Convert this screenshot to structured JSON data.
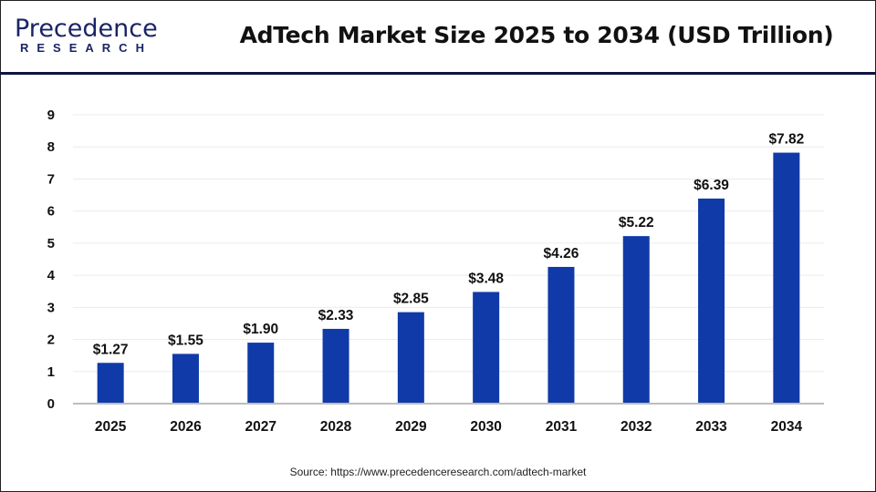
{
  "header": {
    "logo_top": "Precedence",
    "logo_bottom": "RESEARCH",
    "title": "AdTech Market Size 2025 to 2034 (USD Trillion)"
  },
  "source": "Source: https://www.precedenceresearch.com/adtech-market",
  "colors": {
    "bar": "#0f3aa8",
    "logo": "#1a2466",
    "header_rule": "#0d1440"
  },
  "chart_data": {
    "type": "bar",
    "title": "AdTech Market Size 2025 to 2034 (USD Trillion)",
    "categories": [
      "2025",
      "2026",
      "2027",
      "2028",
      "2029",
      "2030",
      "2031",
      "2032",
      "2033",
      "2034"
    ],
    "values": [
      1.27,
      1.55,
      1.9,
      2.33,
      2.85,
      3.48,
      4.26,
      5.22,
      6.39,
      7.82
    ],
    "data_labels": [
      "$1.27",
      "$1.55",
      "$1.90",
      "$2.33",
      "$2.85",
      "$3.48",
      "$4.26",
      "$5.22",
      "$6.39",
      "$7.82"
    ],
    "yticks": [
      "0",
      "1",
      "2",
      "3",
      "4",
      "5",
      "6",
      "7",
      "8",
      "9"
    ],
    "ylim": [
      0,
      9
    ],
    "grid": true,
    "xlabel": "",
    "ylabel": ""
  }
}
